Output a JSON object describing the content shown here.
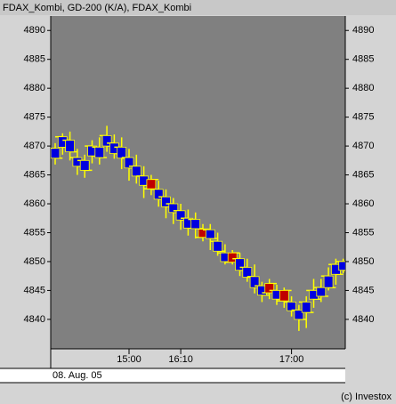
{
  "chart_data": {
    "type": "candlestick",
    "title": "FDAX_Kombi,  GD-200 (K/A),  FDAX_Kombi",
    "date_label": "08. Aug. 05",
    "copyright": "(c) Investox",
    "categories": [
      null,
      null,
      null,
      null,
      null,
      null,
      null,
      null,
      null,
      null,
      "15:00",
      null,
      null,
      null,
      null,
      null,
      null,
      "16:10",
      null,
      null,
      null,
      null,
      null,
      null,
      null,
      null,
      null,
      null,
      null,
      null,
      null,
      null,
      "17:00",
      null,
      null,
      null,
      null,
      null,
      null,
      null
    ],
    "open": [
      4869.6,
      4871.6,
      4871.0,
      4868.0,
      4867.5,
      4870.0,
      4869.8,
      4871.8,
      4870.5,
      4869.8,
      4868.0,
      4866.5,
      4864.8,
      4862.6,
      4862.5,
      4861.2,
      4860.0,
      4858.8,
      4857.5,
      4857.3,
      4854.2,
      4855.5,
      4853.5,
      4851.5,
      4849.9,
      4850.5,
      4849.0,
      4847.4,
      4845.8,
      4844.6,
      4845.0,
      4843.2,
      4843.0,
      4841.6,
      4843.0,
      4845.0,
      4845.5,
      4847.5,
      4849.5,
      4850.0
    ],
    "close": [
      4867.9,
      4869.8,
      4869.0,
      4866.5,
      4865.8,
      4868.3,
      4868.0,
      4870.0,
      4868.7,
      4867.9,
      4866.2,
      4864.8,
      4863.2,
      4864.2,
      4860.8,
      4859.5,
      4858.5,
      4857.2,
      4855.8,
      4855.7,
      4855.6,
      4854.0,
      4851.8,
      4850.0,
      4851.5,
      4848.5,
      4847.3,
      4845.5,
      4844.2,
      4846.2,
      4843.5,
      4845.0,
      4841.5,
      4840.0,
      4841.2,
      4843.5,
      4844.0,
      4845.5,
      4847.8,
      4848.5
    ],
    "high": [
      4870.5,
      4872.2,
      4872.5,
      4869.5,
      4868.5,
      4871.0,
      4871.5,
      4873.5,
      4872.0,
      4871.5,
      4869.5,
      4868.5,
      4866.5,
      4865.0,
      4864.0,
      4862.5,
      4861.0,
      4860.0,
      4859.0,
      4858.5,
      4856.5,
      4856.5,
      4855.0,
      4853.0,
      4852.0,
      4851.5,
      4850.5,
      4849.5,
      4846.5,
      4847.0,
      4846.0,
      4845.5,
      4844.0,
      4842.5,
      4844.0,
      4847.0,
      4847.0,
      4849.0,
      4850.5,
      4850.5
    ],
    "low": [
      4866.8,
      4868.5,
      4867.5,
      4865.0,
      4864.5,
      4867.0,
      4866.8,
      4869.0,
      4867.8,
      4866.0,
      4864.0,
      4863.5,
      4861.0,
      4861.5,
      4859.5,
      4857.5,
      4856.5,
      4855.5,
      4854.5,
      4854.0,
      4853.5,
      4852.0,
      4851.0,
      4849.5,
      4849.5,
      4847.5,
      4846.5,
      4844.5,
      4843.0,
      4843.5,
      4842.5,
      4842.0,
      4840.5,
      4838.0,
      4838.5,
      4842.0,
      4843.0,
      4845.0,
      4846.0,
      4848.0
    ],
    "up_color": "#c00000",
    "down_color": "#0000e0",
    "wick_color": "#ffff00",
    "background": "#808080",
    "ylim": [
      4834.9,
      4892.5
    ],
    "yticks": [
      4840,
      4845,
      4850,
      4855,
      4860,
      4865,
      4870,
      4875,
      4880,
      4885,
      4890
    ]
  }
}
